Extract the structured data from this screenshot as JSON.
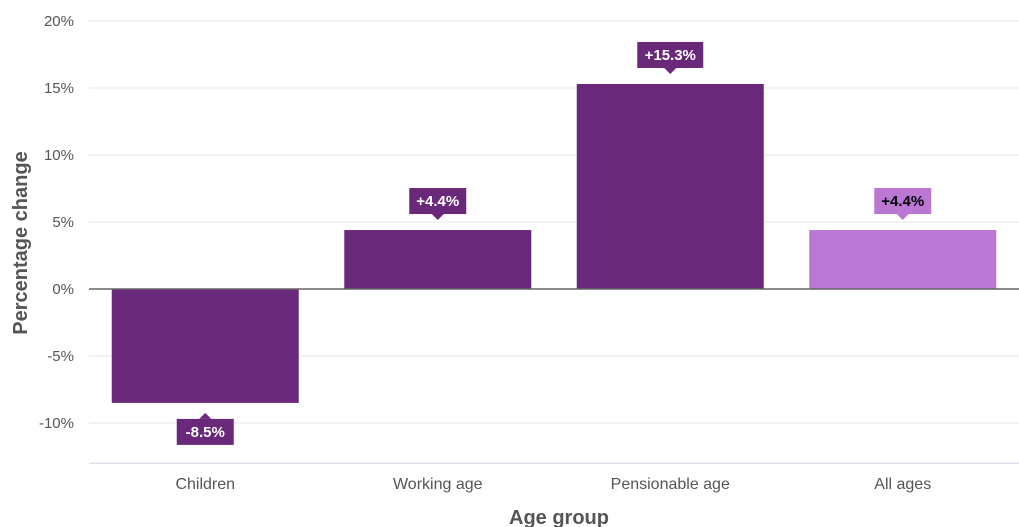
{
  "chart_data": {
    "type": "bar",
    "title": "",
    "xlabel": "Age group",
    "ylabel": "Percentage change",
    "categories": [
      "Children",
      "Working age",
      "Pensionable age",
      "All ages"
    ],
    "values": [
      -8.5,
      4.4,
      15.3,
      4.4
    ],
    "data_labels": [
      "-8.5%",
      "+4.4%",
      "+15.3%",
      "+4.4%"
    ],
    "bar_colors": [
      "#6a287a",
      "#6a287a",
      "#6a287a",
      "#bb77d4"
    ],
    "label_text_colors": [
      "#ffffff",
      "#ffffff",
      "#ffffff",
      "#000000"
    ],
    "ylim": [
      -13,
      20
    ],
    "yticks": [
      20,
      15,
      10,
      5,
      0,
      -5,
      -10
    ],
    "ytick_labels": [
      "20%",
      "15%",
      "10%",
      "5%",
      "0%",
      "-5%",
      "-10%"
    ],
    "grid": true,
    "legend": "none"
  }
}
